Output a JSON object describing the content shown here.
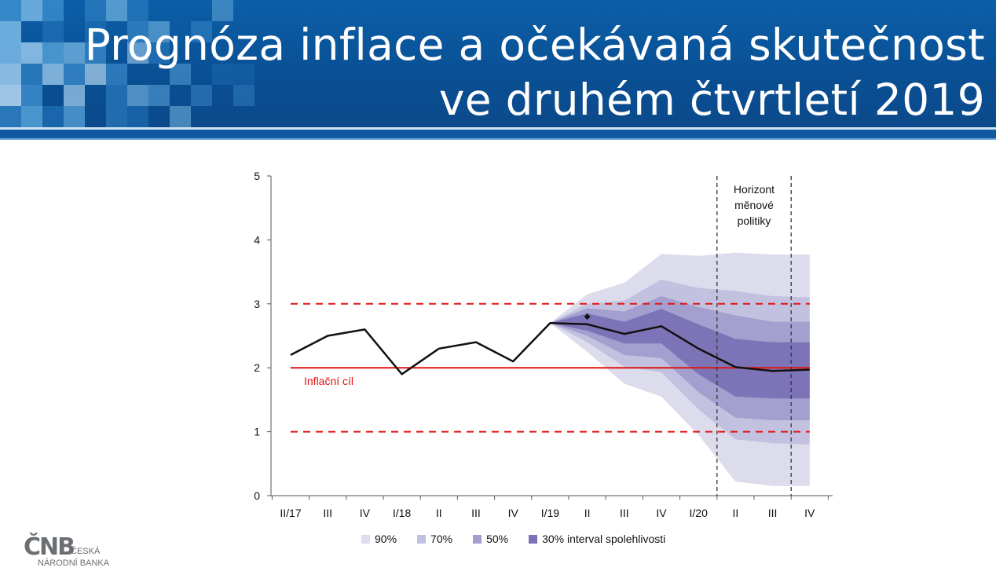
{
  "header": {
    "title_line1": "Prognóza inflace a očekávaná skutečnost",
    "title_line2": "ve druhém čtvrtletí 2019",
    "background_color": "#0a4f93"
  },
  "chart_data": {
    "type": "area",
    "subtype": "fan-chart",
    "title": "",
    "xlabel": "",
    "ylabel": "",
    "categories": [
      "II/17",
      "III",
      "IV",
      "I/18",
      "II",
      "III",
      "IV",
      "I/19",
      "II",
      "III",
      "IV",
      "I/20",
      "II",
      "III",
      "IV"
    ],
    "ylim": [
      0,
      5
    ],
    "yticks": [
      0,
      1,
      2,
      3,
      4,
      5
    ],
    "grid": false,
    "series": [
      {
        "kind": "line",
        "color": "#111111",
        "values": [
          2.2,
          2.5,
          2.6,
          1.9,
          2.3,
          2.4,
          2.1,
          2.7,
          2.68,
          2.53,
          2.65,
          2.3,
          2.01,
          1.95,
          1.97
        ]
      }
    ],
    "actual_point": {
      "category": "II",
      "category_index": 8,
      "value": 2.8
    },
    "fan_start_index": 7,
    "bands": [
      {
        "label": "90%",
        "color": "#dcdcec",
        "upper": [
          2.7,
          3.15,
          3.33,
          3.78,
          3.75,
          3.8,
          3.77,
          3.77
        ],
        "lower": [
          2.7,
          2.25,
          1.75,
          1.55,
          0.95,
          0.22,
          0.15,
          0.15
        ]
      },
      {
        "label": "70%",
        "color": "#c3c1e0",
        "upper": [
          2.7,
          3.0,
          3.05,
          3.38,
          3.25,
          3.2,
          3.12,
          3.1
        ],
        "lower": [
          2.7,
          2.4,
          2.02,
          1.93,
          1.35,
          0.88,
          0.82,
          0.8
        ]
      },
      {
        "label": "50%",
        "color": "#a39fce",
        "upper": [
          2.7,
          2.93,
          2.88,
          3.12,
          2.95,
          2.82,
          2.72,
          2.72
        ],
        "lower": [
          2.7,
          2.5,
          2.2,
          2.15,
          1.62,
          1.22,
          1.18,
          1.18
        ]
      },
      {
        "label": "30% interval spolehlivosti",
        "color": "#7d74b7",
        "upper": [
          2.7,
          2.85,
          2.72,
          2.92,
          2.68,
          2.45,
          2.4,
          2.4
        ],
        "lower": [
          2.7,
          2.58,
          2.38,
          2.38,
          1.9,
          1.55,
          1.52,
          1.52
        ]
      }
    ],
    "target": {
      "label": "Inflační cíl",
      "value": 2,
      "color": "#e3130f",
      "band": [
        1,
        3
      ]
    },
    "policy_horizon": {
      "label_lines": [
        "Horizont",
        "měnové",
        "politiky"
      ],
      "from_index": 11.5,
      "to_index": 13.5
    }
  },
  "logo": {
    "mark": "ČNB",
    "word1": "ČESKÁ",
    "word2": "NÁRODNÍ BANKA"
  }
}
